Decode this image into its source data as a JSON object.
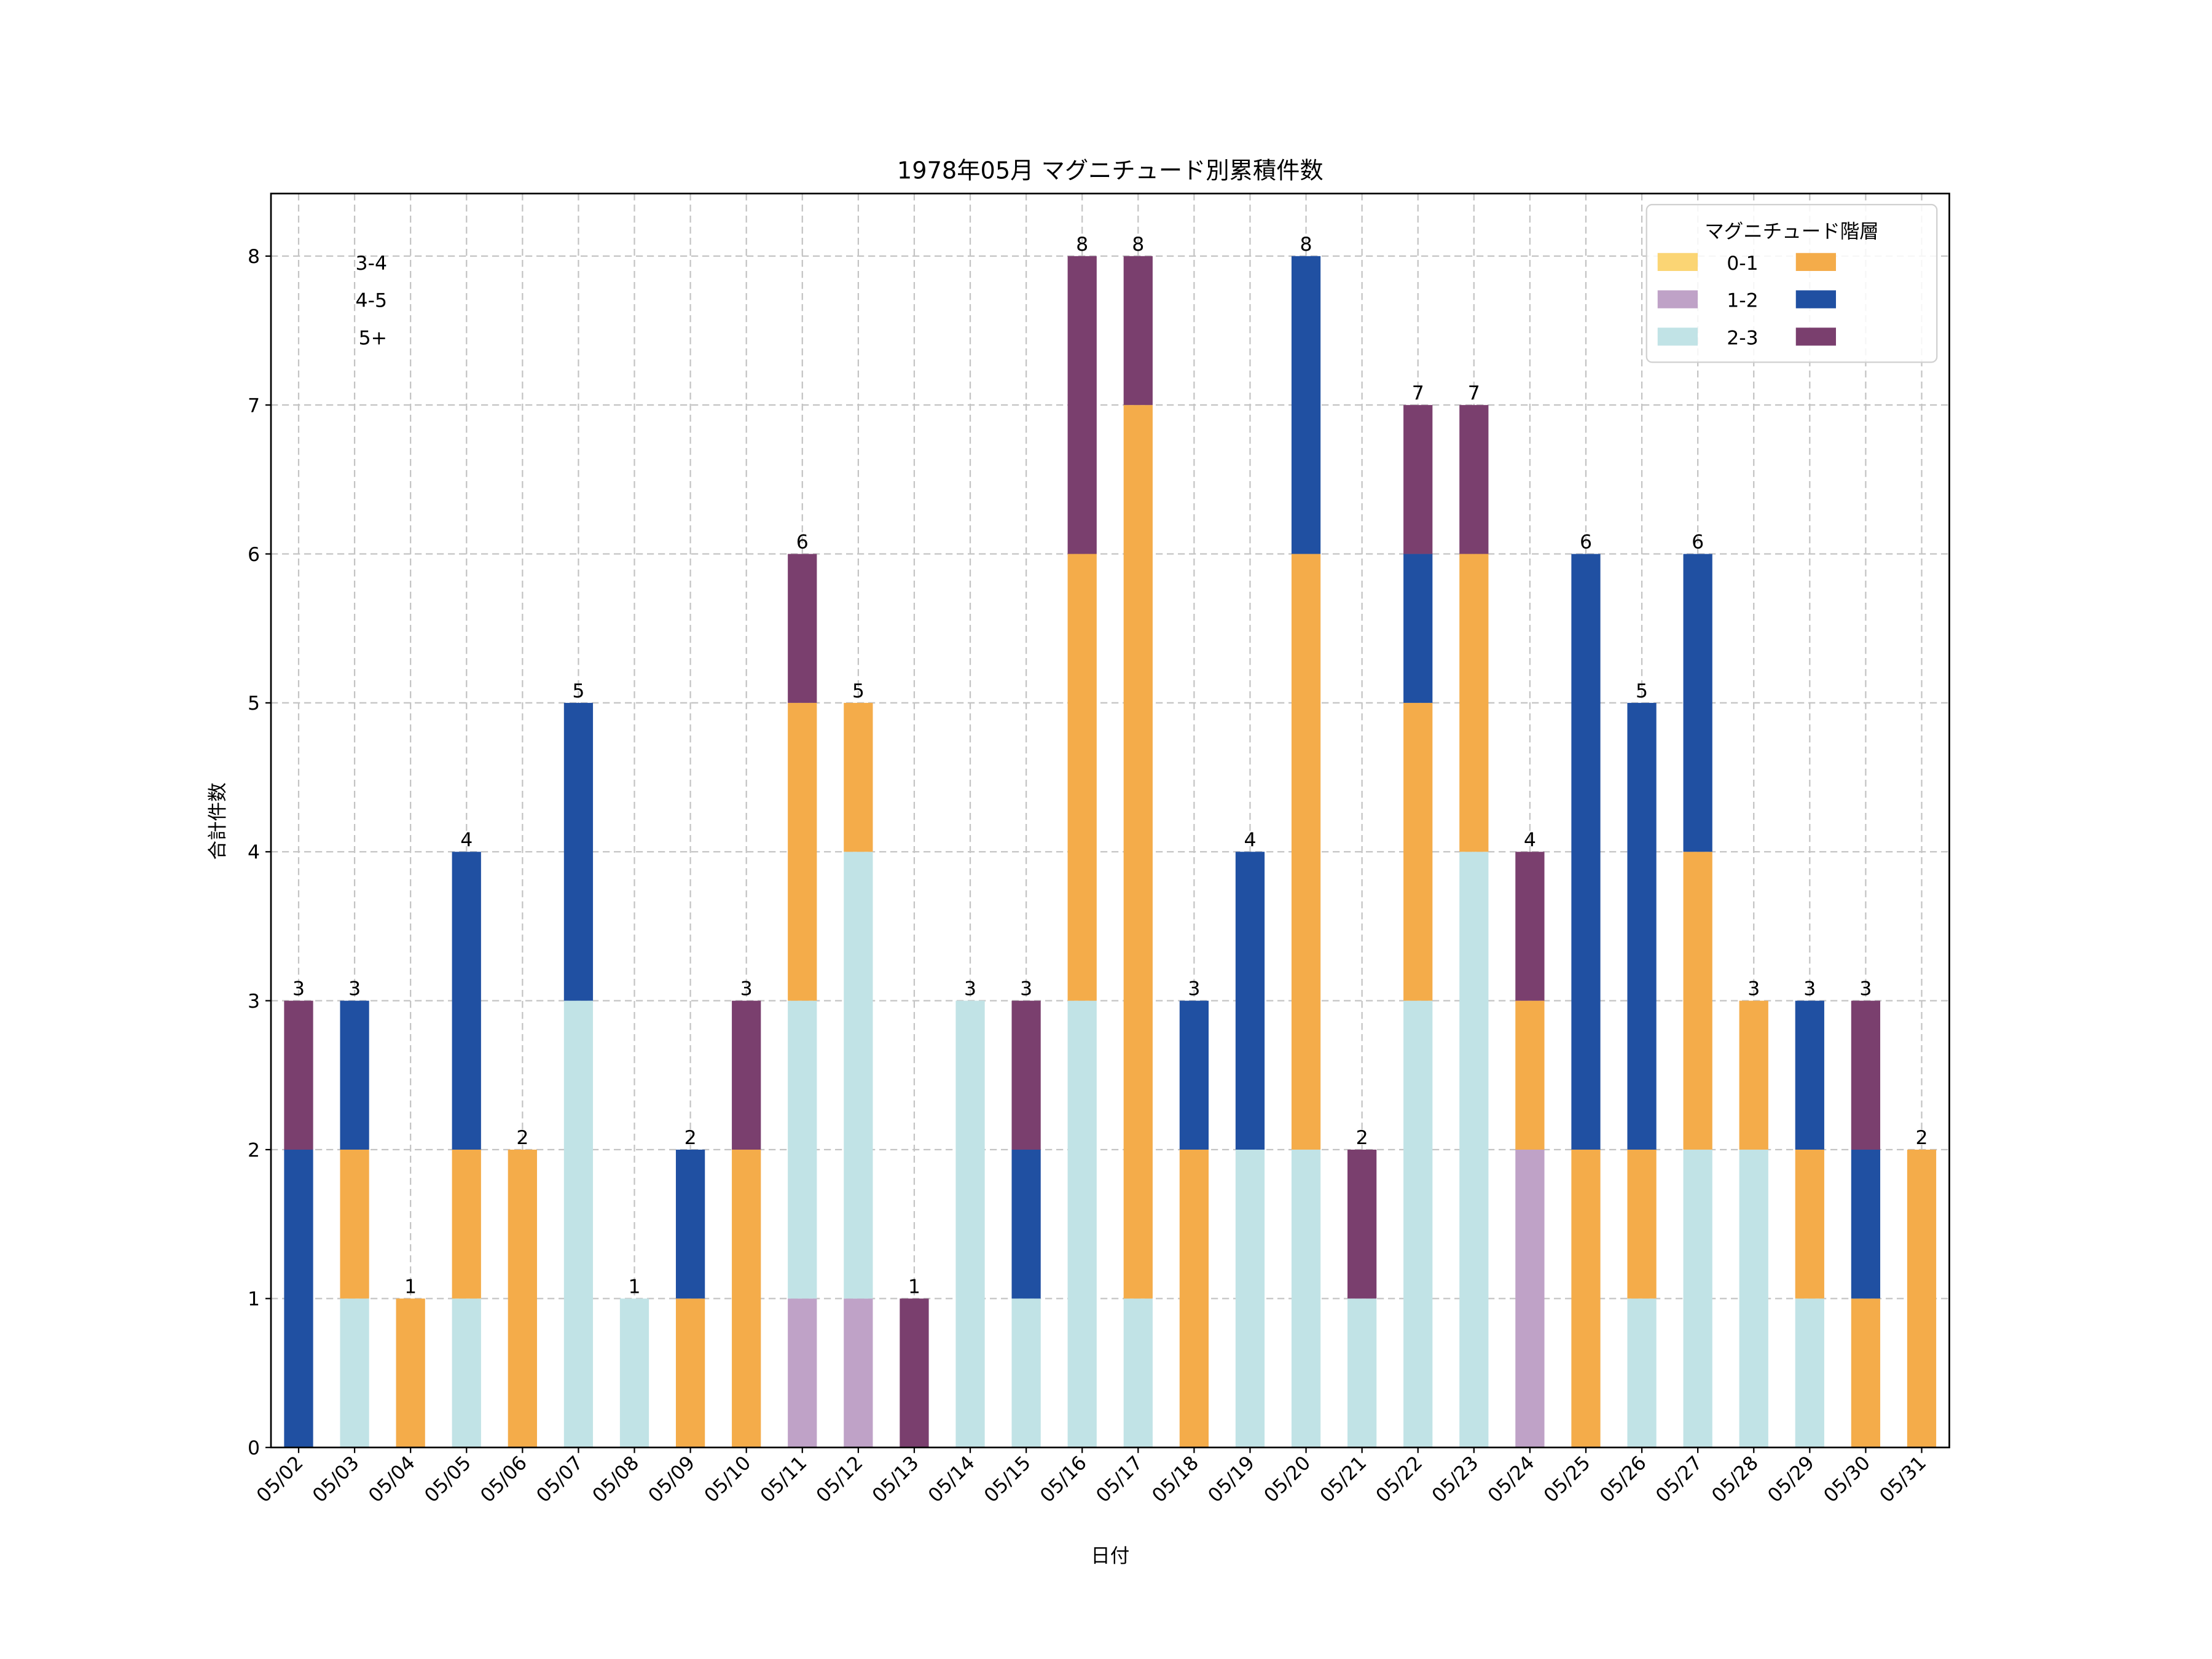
{
  "chart_data": {
    "type": "bar",
    "stacked": true,
    "title": "1978年05月 マグニチュード別累積件数",
    "xlabel": "日付",
    "ylabel": "合計件数",
    "ylim": [
      0,
      8.42
    ],
    "yticks": [
      0,
      1,
      2,
      3,
      4,
      5,
      6,
      7,
      8
    ],
    "grid": true,
    "legend": {
      "title": "マグニチュード階層",
      "placement": "top-right",
      "columns": 2
    },
    "categories": [
      "05/02",
      "05/03",
      "05/04",
      "05/05",
      "05/06",
      "05/07",
      "05/08",
      "05/09",
      "05/10",
      "05/11",
      "05/12",
      "05/13",
      "05/14",
      "05/15",
      "05/16",
      "05/17",
      "05/18",
      "05/19",
      "05/20",
      "05/21",
      "05/22",
      "05/23",
      "05/24",
      "05/25",
      "05/26",
      "05/27",
      "05/28",
      "05/29",
      "05/30",
      "05/31"
    ],
    "series": [
      {
        "name": "0-1",
        "color": "#fbd574",
        "values": [
          0,
          0,
          0,
          0,
          0,
          0,
          0,
          0,
          0,
          0,
          0,
          0,
          0,
          0,
          0,
          0,
          0,
          0,
          0,
          0,
          0,
          0,
          0,
          0,
          0,
          0,
          0,
          0,
          0,
          0
        ]
      },
      {
        "name": "1-2",
        "color": "#bfa2c7",
        "values": [
          0,
          0,
          0,
          0,
          0,
          0,
          0,
          0,
          0,
          1,
          1,
          0,
          0,
          0,
          0,
          0,
          0,
          0,
          0,
          0,
          0,
          0,
          2,
          0,
          0,
          0,
          0,
          0,
          0,
          0
        ]
      },
      {
        "name": "2-3",
        "color": "#c1e3e6",
        "values": [
          0,
          1,
          0,
          1,
          0,
          3,
          1,
          0,
          0,
          2,
          3,
          0,
          3,
          1,
          3,
          1,
          0,
          2,
          2,
          1,
          3,
          4,
          0,
          0,
          1,
          2,
          2,
          1,
          0,
          0
        ]
      },
      {
        "name": "3-4",
        "color": "#f4ac4a",
        "values": [
          0,
          1,
          1,
          1,
          2,
          0,
          0,
          1,
          2,
          2,
          1,
          0,
          0,
          0,
          3,
          6,
          2,
          0,
          4,
          0,
          2,
          2,
          1,
          2,
          1,
          2,
          1,
          1,
          1,
          2
        ]
      },
      {
        "name": "4-5",
        "color": "#2050a2",
        "values": [
          2,
          1,
          0,
          2,
          0,
          2,
          0,
          1,
          0,
          0,
          0,
          0,
          0,
          1,
          0,
          0,
          1,
          2,
          2,
          0,
          1,
          0,
          0,
          4,
          3,
          2,
          0,
          1,
          1,
          0
        ]
      },
      {
        "name": "5+",
        "color": "#7a3f6e",
        "values": [
          1,
          0,
          0,
          0,
          0,
          0,
          0,
          0,
          1,
          1,
          0,
          1,
          0,
          1,
          2,
          1,
          0,
          0,
          0,
          1,
          1,
          1,
          1,
          0,
          0,
          0,
          0,
          0,
          1,
          0
        ]
      }
    ],
    "totals": [
      3,
      3,
      1,
      4,
      2,
      5,
      1,
      2,
      3,
      6,
      5,
      1,
      3,
      3,
      8,
      8,
      3,
      4,
      8,
      2,
      7,
      7,
      4,
      6,
      5,
      6,
      3,
      3,
      3,
      2
    ]
  }
}
